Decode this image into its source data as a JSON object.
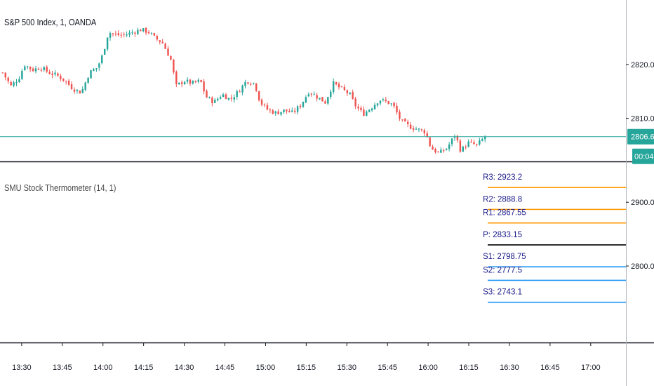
{
  "main_legend": "S&P 500 Index, 1, OANDA",
  "indicator_legend": "SMU Stock Thermometer (14, 1)",
  "colors": {
    "up": "#26a69a",
    "down": "#ef5350",
    "price_line": "#26a69a",
    "resistance": "#ff9800",
    "pivot": "#000000",
    "support": "#2196f3",
    "pivot_text": "#1a1a8a"
  },
  "price_tag": {
    "value": "2806.6",
    "countdown": "00:04"
  },
  "chart_data": [
    {
      "type": "candlestick",
      "title": "S&P 500 Index, 1, OANDA",
      "ylim": [
        2802,
        2832
      ],
      "y_ticks": [
        "2820.0",
        "2810.0"
      ],
      "y_tick_values": [
        2820,
        2810
      ],
      "x_ticks": [
        "13:30",
        "13:45",
        "14:00",
        "14:15",
        "14:30",
        "14:45",
        "15:00",
        "15:15",
        "15:30",
        "15:45",
        "16:00",
        "16:15",
        "16:30",
        "16:45",
        "17:00"
      ],
      "x_range": [
        "13:22",
        "17:13"
      ],
      "last_close": 2806.6,
      "close_path": [
        [
          "13:23",
          2818.5
        ],
        [
          "13:26",
          2816.0
        ],
        [
          "13:29",
          2817.5
        ],
        [
          "13:31",
          2820.0
        ],
        [
          "13:34",
          2819.0
        ],
        [
          "13:37",
          2819.5
        ],
        [
          "13:40",
          2818.5
        ],
        [
          "13:43",
          2818.0
        ],
        [
          "13:46",
          2817.0
        ],
        [
          "13:49",
          2815.5
        ],
        [
          "13:52",
          2814.8
        ],
        [
          "13:55",
          2818.5
        ],
        [
          "13:58",
          2819.5
        ],
        [
          "14:00",
          2822.0
        ],
        [
          "14:02",
          2826.0
        ],
        [
          "14:05",
          2825.5
        ],
        [
          "14:08",
          2825.5
        ],
        [
          "14:11",
          2826.0
        ],
        [
          "14:14",
          2826.5
        ],
        [
          "14:17",
          2826.0
        ],
        [
          "14:19",
          2825.0
        ],
        [
          "14:22",
          2824.0
        ],
        [
          "14:25",
          2821.0
        ],
        [
          "14:27",
          2816.0
        ],
        [
          "14:30",
          2817.0
        ],
        [
          "14:33",
          2816.5
        ],
        [
          "14:36",
          2817.0
        ],
        [
          "14:38",
          2814.0
        ],
        [
          "14:41",
          2813.0
        ],
        [
          "14:44",
          2814.5
        ],
        [
          "14:47",
          2813.5
        ],
        [
          "14:50",
          2815.0
        ],
        [
          "14:53",
          2817.0
        ],
        [
          "14:56",
          2816.5
        ],
        [
          "14:58",
          2813.0
        ],
        [
          "15:01",
          2811.5
        ],
        [
          "15:04",
          2811.0
        ],
        [
          "15:07",
          2811.5
        ],
        [
          "15:10",
          2811.0
        ],
        [
          "15:13",
          2812.5
        ],
        [
          "15:16",
          2815.0
        ],
        [
          "15:19",
          2814.0
        ],
        [
          "15:22",
          2813.0
        ],
        [
          "15:25",
          2816.5
        ],
        [
          "15:28",
          2815.5
        ],
        [
          "15:31",
          2814.5
        ],
        [
          "15:33",
          2812.5
        ],
        [
          "15:36",
          2810.8
        ],
        [
          "15:39",
          2812.0
        ],
        [
          "15:42",
          2813.5
        ],
        [
          "15:45",
          2813.0
        ],
        [
          "15:47",
          2812.5
        ],
        [
          "15:50",
          2809.5
        ],
        [
          "15:53",
          2808.5
        ],
        [
          "15:56",
          2808.0
        ],
        [
          "15:59",
          2807.5
        ],
        [
          "16:01",
          2804.5
        ],
        [
          "16:04",
          2803.5
        ],
        [
          "16:07",
          2804.5
        ],
        [
          "16:10",
          2807.0
        ],
        [
          "16:12",
          2804.0
        ],
        [
          "16:15",
          2805.5
        ],
        [
          "16:18",
          2805.0
        ],
        [
          "16:21",
          2806.6
        ]
      ]
    },
    {
      "type": "line",
      "title": "SMU Stock Thermometer (14, 1)",
      "ylim": [
        2680,
        2963
      ],
      "y_ticks": [
        "2900.0",
        "2800.0"
      ],
      "y_tick_values": [
        2900,
        2800
      ],
      "x_start": "16:22",
      "x_end": "17:13",
      "levels": [
        {
          "label": "R3: 2923.2",
          "value": 2923.2,
          "kind": "resistance"
        },
        {
          "label": "R2: 2888.8",
          "value": 2888.8,
          "kind": "resistance"
        },
        {
          "label": "R1: 2867.55",
          "value": 2867.55,
          "kind": "resistance"
        },
        {
          "label": "P: 2833.15",
          "value": 2833.15,
          "kind": "pivot"
        },
        {
          "label": "S1: 2798.75",
          "value": 2798.75,
          "kind": "support"
        },
        {
          "label": "S2: 2777.5",
          "value": 2777.5,
          "kind": "support"
        },
        {
          "label": "S3: 2743.1",
          "value": 2743.1,
          "kind": "support"
        }
      ]
    }
  ]
}
